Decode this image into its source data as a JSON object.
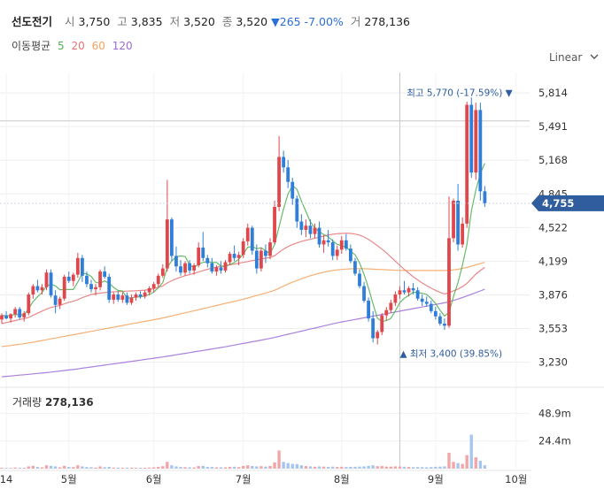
{
  "stock": {
    "name": "선도전기",
    "open_label": "시",
    "open": "3,750",
    "high_label": "고",
    "high": "3,835",
    "low_label": "저",
    "low": "3,520",
    "close_label": "종",
    "close": "3,520",
    "change": "▼265",
    "change_pct": "-7.00%",
    "volume_label": "거",
    "volume": "278,136"
  },
  "ma": {
    "label": "이동평균",
    "periods": [
      {
        "name": "5",
        "color": "#4caf50"
      },
      {
        "name": "20",
        "color": "#e57373"
      },
      {
        "name": "60",
        "color": "#f5a25d"
      },
      {
        "name": "120",
        "color": "#9c6ad6"
      }
    ]
  },
  "scale_selector": {
    "label": "Linear",
    "icon": "chevron-down-icon"
  },
  "volume_panel": {
    "label": "거래량",
    "value": "278,136"
  },
  "colors": {
    "up": "#e0474c",
    "down": "#2f7ed8",
    "accent": "#2f5d9e"
  },
  "chart_data": {
    "type": "candlestick",
    "y_ticks": [
      "5,814",
      "5,491",
      "5,168",
      "4,845",
      "4,522",
      "4,199",
      "3,876",
      "3,553",
      "3,230"
    ],
    "y_tick_values": [
      5814,
      5491,
      5168,
      4845,
      4522,
      4199,
      3876,
      3553,
      3230
    ],
    "ylim": [
      3040,
      6010
    ],
    "x_ticks": [
      {
        "label": "14",
        "index": 1
      },
      {
        "label": "5월",
        "index": 15
      },
      {
        "label": "6월",
        "index": 34
      },
      {
        "label": "7월",
        "index": 54
      },
      {
        "label": "8월",
        "index": 76
      },
      {
        "label": "9월",
        "index": 97
      },
      {
        "label": "10월",
        "index": 115
      }
    ],
    "current_price": "4,755",
    "current_value": 4755,
    "crosshair_value": 5545,
    "crosshair_index": 89,
    "high_annotation": {
      "text": "최고 5,770 (-17.59%)",
      "value": 5770,
      "index": 115
    },
    "low_annotation": {
      "text": "최저 3,400 (39.85%)",
      "value": 3400,
      "index": 89
    },
    "volume_ticks": [
      "48.9m",
      "24.4m"
    ],
    "volume_tick_values": [
      48.9,
      24.4
    ],
    "volume_max": 64,
    "candles": [
      [
        3640,
        3700,
        3600,
        3680,
        0.8
      ],
      [
        3680,
        3720,
        3640,
        3650,
        0.7
      ],
      [
        3650,
        3700,
        3610,
        3690,
        0.6
      ],
      [
        3690,
        3760,
        3660,
        3740,
        1.0
      ],
      [
        3740,
        3760,
        3640,
        3660,
        0.8
      ],
      [
        3660,
        3720,
        3620,
        3700,
        0.7
      ],
      [
        3700,
        3900,
        3680,
        3880,
        2.0
      ],
      [
        3880,
        3980,
        3840,
        3960,
        2.5
      ],
      [
        3960,
        4020,
        3900,
        3920,
        1.5
      ],
      [
        3920,
        3980,
        3880,
        3950,
        1.2
      ],
      [
        3950,
        4120,
        3920,
        4090,
        3.0
      ],
      [
        4090,
        4120,
        3850,
        3870,
        2.5
      ],
      [
        3870,
        3920,
        3700,
        3780,
        2.0
      ],
      [
        3780,
        3860,
        3740,
        3840,
        1.2
      ],
      [
        3840,
        4070,
        3820,
        4050,
        2.5
      ],
      [
        4050,
        4100,
        3990,
        4010,
        1.5
      ],
      [
        4010,
        4090,
        3960,
        4070,
        1.4
      ],
      [
        4070,
        4280,
        4040,
        4230,
        3.0
      ],
      [
        4230,
        4260,
        4000,
        4060,
        2.0
      ],
      [
        4060,
        4100,
        3950,
        3980,
        1.4
      ],
      [
        3980,
        4020,
        3900,
        3930,
        1.3
      ],
      [
        3930,
        3980,
        3870,
        3950,
        1.0
      ],
      [
        3950,
        4120,
        3920,
        4100,
        2.0
      ],
      [
        4100,
        4150,
        4030,
        4050,
        1.3
      ],
      [
        4050,
        4080,
        3800,
        3830,
        1.6
      ],
      [
        3830,
        3900,
        3790,
        3880,
        1.0
      ],
      [
        3880,
        3910,
        3810,
        3830,
        0.9
      ],
      [
        3830,
        3900,
        3800,
        3870,
        0.9
      ],
      [
        3870,
        3900,
        3780,
        3800,
        0.9
      ],
      [
        3800,
        3880,
        3780,
        3850,
        0.9
      ],
      [
        3850,
        3900,
        3820,
        3880,
        0.8
      ],
      [
        3880,
        3910,
        3840,
        3860,
        0.8
      ],
      [
        3860,
        3920,
        3840,
        3900,
        0.8
      ],
      [
        3900,
        3960,
        3870,
        3940,
        1.0
      ],
      [
        3940,
        4000,
        3900,
        3980,
        1.2
      ],
      [
        3980,
        4080,
        3950,
        4060,
        1.6
      ],
      [
        4060,
        4170,
        4040,
        4130,
        2.2
      ],
      [
        4130,
        4980,
        4100,
        4600,
        6.0
      ],
      [
        4600,
        4620,
        4200,
        4250,
        3.0
      ],
      [
        4250,
        4340,
        4100,
        4150,
        2.0
      ],
      [
        4150,
        4210,
        4060,
        4090,
        1.5
      ],
      [
        4090,
        4200,
        4060,
        4180,
        1.3
      ],
      [
        4180,
        4210,
        4080,
        4110,
        1.2
      ],
      [
        4110,
        4180,
        4070,
        4160,
        1.1
      ],
      [
        4160,
        4380,
        4140,
        4330,
        2.3
      ],
      [
        4330,
        4480,
        4200,
        4230,
        2.5
      ],
      [
        4230,
        4260,
        4140,
        4180,
        1.6
      ],
      [
        4180,
        4230,
        4080,
        4100,
        1.5
      ],
      [
        4100,
        4160,
        4060,
        4140,
        1.2
      ],
      [
        4140,
        4200,
        4080,
        4110,
        1.2
      ],
      [
        4110,
        4210,
        4090,
        4190,
        1.2
      ],
      [
        4190,
        4290,
        4160,
        4270,
        1.6
      ],
      [
        4270,
        4350,
        4200,
        4230,
        1.7
      ],
      [
        4230,
        4290,
        4160,
        4260,
        1.4
      ],
      [
        4260,
        4420,
        4230,
        4390,
        2.5
      ],
      [
        4390,
        4560,
        4350,
        4520,
        3.0
      ],
      [
        4520,
        4540,
        4260,
        4300,
        2.3
      ],
      [
        4300,
        4360,
        4080,
        4130,
        2.0
      ],
      [
        4130,
        4330,
        4100,
        4300,
        2.2
      ],
      [
        4300,
        4360,
        4180,
        4250,
        1.8
      ],
      [
        4250,
        4420,
        4220,
        4380,
        2.4
      ],
      [
        4380,
        4780,
        4360,
        4720,
        5.5
      ],
      [
        4720,
        5400,
        4680,
        5200,
        16.0
      ],
      [
        5200,
        5260,
        5050,
        5100,
        6.0
      ],
      [
        5100,
        5170,
        4900,
        4960,
        5.0
      ],
      [
        4960,
        5000,
        4740,
        4800,
        4.2
      ],
      [
        4800,
        4830,
        4520,
        4580,
        4.0
      ],
      [
        4580,
        4650,
        4450,
        4500,
        3.0
      ],
      [
        4500,
        4600,
        4430,
        4540,
        2.3
      ],
      [
        4540,
        4600,
        4420,
        4460,
        2.0
      ],
      [
        4460,
        4560,
        4420,
        4520,
        1.7
      ],
      [
        4520,
        4580,
        4330,
        4360,
        2.0
      ],
      [
        4360,
        4450,
        4280,
        4400,
        1.8
      ],
      [
        4400,
        4500,
        4340,
        4380,
        1.6
      ],
      [
        4380,
        4410,
        4210,
        4250,
        1.8
      ],
      [
        4250,
        4350,
        4210,
        4310,
        1.5
      ],
      [
        4310,
        4440,
        4270,
        4400,
        1.7
      ],
      [
        4400,
        4460,
        4300,
        4320,
        1.5
      ],
      [
        4320,
        4360,
        4180,
        4200,
        1.6
      ],
      [
        4200,
        4230,
        4060,
        4080,
        1.7
      ],
      [
        4080,
        4120,
        3940,
        3960,
        1.8
      ],
      [
        3960,
        4000,
        3800,
        3820,
        2.0
      ],
      [
        3820,
        3850,
        3620,
        3650,
        2.5
      ],
      [
        3650,
        3720,
        3420,
        3460,
        3.0
      ],
      [
        3460,
        3540,
        3400,
        3520,
        2.2
      ],
      [
        3520,
        3700,
        3490,
        3680,
        2.3
      ],
      [
        3680,
        3760,
        3630,
        3730,
        1.8
      ],
      [
        3730,
        3830,
        3700,
        3800,
        1.8
      ],
      [
        3800,
        3910,
        3770,
        3880,
        2.0
      ],
      [
        3880,
        3960,
        3840,
        3920,
        1.9
      ],
      [
        3920,
        4010,
        3880,
        3900,
        1.7
      ],
      [
        3900,
        3960,
        3860,
        3940,
        1.5
      ],
      [
        3940,
        3990,
        3880,
        3920,
        1.3
      ],
      [
        3920,
        3950,
        3820,
        3840,
        1.4
      ],
      [
        3840,
        3880,
        3770,
        3810,
        1.3
      ],
      [
        3810,
        3860,
        3760,
        3790,
        1.2
      ],
      [
        3790,
        3820,
        3700,
        3720,
        1.4
      ],
      [
        3720,
        3760,
        3640,
        3670,
        1.6
      ],
      [
        3670,
        3700,
        3580,
        3600,
        1.8
      ],
      [
        3600,
        3650,
        3540,
        3580,
        2.0
      ],
      [
        3580,
        4820,
        3560,
        4420,
        14.0
      ],
      [
        4420,
        4800,
        4380,
        4780,
        6.0
      ],
      [
        4780,
        4940,
        4300,
        4360,
        5.0
      ],
      [
        4360,
        4620,
        4330,
        4560,
        4.2
      ],
      [
        4560,
        5730,
        4520,
        5700,
        12.0
      ],
      [
        5700,
        5770,
        5000,
        5050,
        30.0
      ],
      [
        5050,
        5720,
        4980,
        5650,
        10.0
      ],
      [
        5650,
        5720,
        4780,
        4870,
        7.0
      ],
      [
        4870,
        4920,
        4720,
        4755,
        3.0
      ]
    ],
    "ma5": [
      3680,
      3675,
      3678,
      3690,
      3684,
      3686,
      3744,
      3812,
      3858,
      3898,
      3960,
      3978,
      3962,
      3926,
      3928,
      3928,
      3928,
      3998,
      4083,
      4079,
      4053,
      3997,
      3988,
      4010,
      3989,
      3948,
      3918,
      3913,
      3846,
      3847,
      3857,
      3856,
      3866,
      3880,
      3902,
      3946,
      3994,
      4138,
      4202,
      4242,
      4249,
      4246,
      4163,
      4136,
      4173,
      4187,
      4196,
      4186,
      4188,
      4152,
      4148,
      4169,
      4186,
      4218,
      4270,
      4333,
      4341,
      4319,
      4329,
      4300,
      4272,
      4360,
      4530,
      4700,
      4843,
      4925,
      4889,
      4777,
      4677,
      4577,
      4519,
      4480,
      4456,
      4434,
      4395,
      4361,
      4349,
      4333,
      4294,
      4262,
      4183,
      4072,
      3942,
      3793,
      3652,
      3621,
      3629,
      3651,
      3722,
      3800,
      3844,
      3872,
      3901,
      3898,
      3892,
      3880,
      3841,
      3794,
      3727,
      3673,
      3707,
      3858,
      3993,
      4159,
      4359,
      4683,
      4882,
      5040,
      5139
    ],
    "ma20": [
      3600,
      3610,
      3620,
      3630,
      3640,
      3648,
      3660,
      3680,
      3700,
      3720,
      3740,
      3755,
      3765,
      3775,
      3790,
      3805,
      3815,
      3830,
      3850,
      3865,
      3880,
      3888,
      3893,
      3898,
      3903,
      3905,
      3908,
      3910,
      3912,
      3914,
      3916,
      3918,
      3922,
      3928,
      3936,
      3948,
      3962,
      3990,
      4012,
      4030,
      4046,
      4060,
      4071,
      4082,
      4096,
      4110,
      4122,
      4132,
      4142,
      4150,
      4158,
      4165,
      4172,
      4180,
      4188,
      4196,
      4205,
      4212,
      4220,
      4228,
      4235,
      4252,
      4285,
      4315,
      4340,
      4360,
      4375,
      4388,
      4400,
      4410,
      4420,
      4430,
      4440,
      4450,
      4458,
      4463,
      4466,
      4468,
      4466,
      4460,
      4450,
      4432,
      4408,
      4380,
      4348,
      4315,
      4280,
      4240,
      4200,
      4160,
      4120,
      4085,
      4050,
      4020,
      3990,
      3965,
      3940,
      3920,
      3900,
      3885,
      3895,
      3915,
      3932,
      3955,
      3985,
      4030,
      4075,
      4110,
      4140
    ],
    "ma60": [
      3380,
      3385,
      3390,
      3396,
      3402,
      3408,
      3415,
      3422,
      3430,
      3438,
      3446,
      3454,
      3462,
      3470,
      3478,
      3486,
      3494,
      3502,
      3510,
      3518,
      3526,
      3534,
      3542,
      3550,
      3558,
      3566,
      3574,
      3582,
      3590,
      3598,
      3606,
      3614,
      3622,
      3630,
      3638,
      3646,
      3654,
      3664,
      3674,
      3684,
      3694,
      3704,
      3714,
      3724,
      3734,
      3744,
      3754,
      3764,
      3774,
      3784,
      3794,
      3804,
      3814,
      3824,
      3834,
      3846,
      3858,
      3870,
      3882,
      3894,
      3906,
      3920,
      3940,
      3960,
      3980,
      3998,
      4014,
      4030,
      4046,
      4060,
      4072,
      4084,
      4094,
      4102,
      4110,
      4116,
      4120,
      4124,
      4126,
      4128,
      4128,
      4127,
      4125,
      4123,
      4121,
      4119,
      4117,
      4115,
      4113,
      4112,
      4111,
      4110,
      4110,
      4110,
      4110,
      4110,
      4110,
      4110,
      4110,
      4110,
      4112,
      4116,
      4122,
      4130,
      4140,
      4152,
      4164,
      4176,
      4188
    ],
    "ma120": [
      3090,
      3094,
      3098,
      3102,
      3106,
      3110,
      3114,
      3118,
      3122,
      3126,
      3130,
      3135,
      3140,
      3145,
      3150,
      3155,
      3160,
      3166,
      3172,
      3178,
      3184,
      3190,
      3196,
      3202,
      3208,
      3214,
      3220,
      3226,
      3232,
      3238,
      3244,
      3250,
      3256,
      3262,
      3268,
      3274,
      3280,
      3287,
      3294,
      3301,
      3308,
      3315,
      3322,
      3329,
      3336,
      3343,
      3350,
      3357,
      3364,
      3371,
      3378,
      3386,
      3394,
      3402,
      3410,
      3418,
      3426,
      3434,
      3442,
      3450,
      3458,
      3468,
      3478,
      3488,
      3498,
      3508,
      3518,
      3528,
      3538,
      3548,
      3558,
      3568,
      3578,
      3588,
      3598,
      3608,
      3616,
      3624,
      3632,
      3640,
      3648,
      3656,
      3664,
      3672,
      3680,
      3688,
      3696,
      3704,
      3712,
      3720,
      3728,
      3736,
      3744,
      3752,
      3760,
      3768,
      3776,
      3784,
      3792,
      3800,
      3810,
      3822,
      3836,
      3850,
      3866,
      3882,
      3898,
      3914,
      3930
    ]
  }
}
